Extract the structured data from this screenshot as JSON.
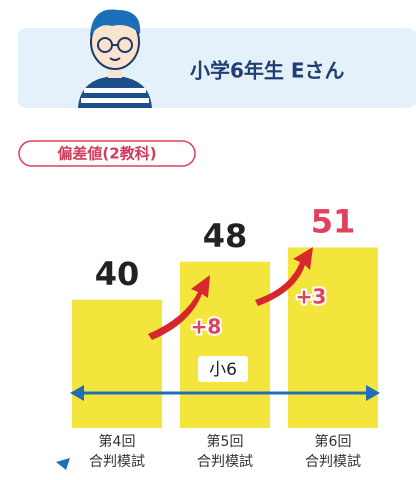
{
  "header": {
    "title": "小学6年生 Eさん"
  },
  "badge": "偏差値(2教科)",
  "chart_data": {
    "type": "bar",
    "categories": [
      "第4回\n合判模試",
      "第5回\n合判模試",
      "第6回\n合判模試"
    ],
    "values": [
      40,
      48,
      51
    ],
    "color": "#f3e53b",
    "label_colors": [
      "#222222",
      "#222222",
      "#e2405c"
    ],
    "ylim": [
      13,
      61
    ],
    "annotations": [
      "+8",
      "+3"
    ],
    "span_label": "小6"
  }
}
